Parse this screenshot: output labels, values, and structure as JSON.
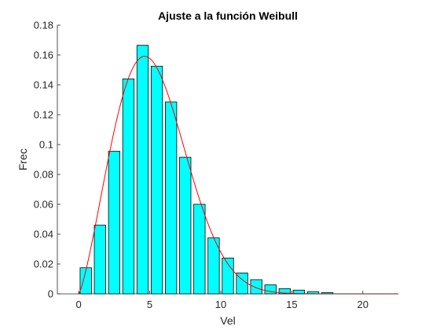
{
  "chart_data": {
    "type": "bar",
    "title": "Ajuste a la función Weibull",
    "xlabel": "Vel",
    "ylabel": "Frec",
    "xlim": [
      -1.5,
      22.5
    ],
    "ylim": [
      0,
      0.18
    ],
    "xticks": [
      0,
      5,
      10,
      15,
      20
    ],
    "xtick_labels": [
      "0",
      "5",
      "10",
      "15",
      "20"
    ],
    "yticks": [
      0,
      0.02,
      0.04,
      0.06,
      0.08,
      0.1,
      0.12,
      0.14,
      0.16,
      0.18
    ],
    "ytick_labels": [
      "0",
      "0.02",
      "0.04",
      "0.06",
      "0.08",
      "0.1",
      "0.12",
      "0.14",
      "0.16",
      "0.18"
    ],
    "grid": false,
    "bars": {
      "centers": [
        0.5,
        1.5,
        2.5,
        3.5,
        4.5,
        5.5,
        6.5,
        7.5,
        8.5,
        9.5,
        10.5,
        11.5,
        12.5,
        13.5,
        14.5,
        15.5,
        16.5,
        17.5
      ],
      "values": [
        0.0175,
        0.046,
        0.0955,
        0.144,
        0.1665,
        0.1525,
        0.1285,
        0.0915,
        0.06,
        0.0375,
        0.024,
        0.014,
        0.0095,
        0.006,
        0.0035,
        0.0025,
        0.0015,
        0.0008
      ],
      "width": 0.8,
      "color": "#00ffff",
      "edge_color": "#000000"
    },
    "curve": {
      "name": "Weibull",
      "k": 2.3,
      "c": 5.95,
      "x_range": [
        0,
        22.5
      ],
      "color": "#ff0000"
    }
  }
}
